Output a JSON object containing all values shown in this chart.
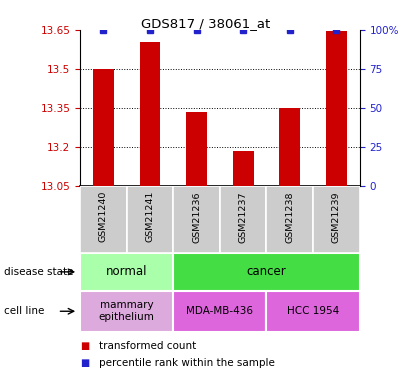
{
  "title": "GDS817 / 38061_at",
  "samples": [
    "GSM21240",
    "GSM21241",
    "GSM21236",
    "GSM21237",
    "GSM21238",
    "GSM21239"
  ],
  "red_values": [
    13.5,
    13.605,
    13.335,
    13.185,
    13.35,
    13.645
  ],
  "y_min": 13.05,
  "y_max": 13.65,
  "y_ticks": [
    13.05,
    13.2,
    13.35,
    13.5,
    13.65
  ],
  "y2_ticks": [
    0,
    25,
    50,
    75,
    100
  ],
  "y2_tick_labels": [
    "0",
    "25",
    "50",
    "75",
    "100%"
  ],
  "bar_color": "#cc0000",
  "dot_color": "#2222cc",
  "disease_state_groups": [
    {
      "label": "normal",
      "start": 0,
      "end": 2,
      "color": "#aaffaa"
    },
    {
      "label": "cancer",
      "start": 2,
      "end": 6,
      "color": "#44dd44"
    }
  ],
  "cell_line_groups": [
    {
      "label": "mammary\nepithelium",
      "start": 0,
      "end": 2,
      "color": "#ddaadd"
    },
    {
      "label": "MDA-MB-436",
      "start": 2,
      "end": 4,
      "color": "#dd66dd"
    },
    {
      "label": "HCC 1954",
      "start": 4,
      "end": 6,
      "color": "#dd66dd"
    }
  ],
  "background_color": "#ffffff",
  "tick_label_color_left": "#cc0000",
  "tick_label_color_right": "#2222cc",
  "sample_bg_color": "#cccccc",
  "sample_border_color": "#ffffff"
}
